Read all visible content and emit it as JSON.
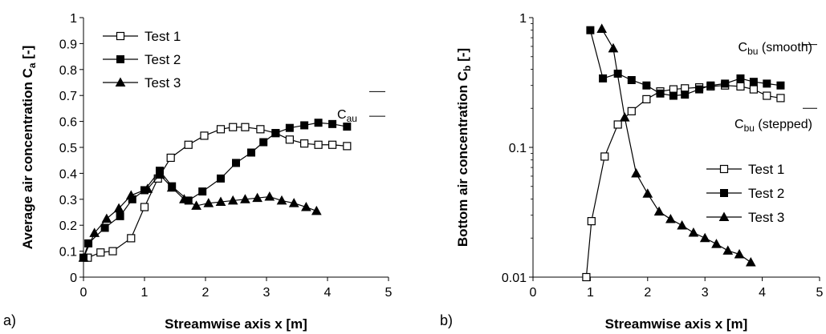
{
  "chart_data": [
    {
      "type": "line",
      "panel_label": "a)",
      "xlabel": "Streamwise axis x [m]",
      "ylabel_main": "Average air concentration C",
      "ylabel_sub": "a",
      "ylabel_tail": " [-]",
      "xlim": [
        0,
        5
      ],
      "ylim": [
        0,
        1
      ],
      "yscale": "linear",
      "x_ticks": [
        0,
        1,
        2,
        3,
        4,
        5
      ],
      "y_ticks": [
        0,
        0.1,
        0.2,
        0.3,
        0.4,
        0.5,
        0.6,
        0.7,
        0.8,
        0.9,
        1
      ],
      "grid": false,
      "legend_position": "top-left",
      "series": [
        {
          "name": "Test 1",
          "marker": "square-open",
          "color": "#000000",
          "x": [
            0.07,
            0.28,
            0.48,
            0.78,
            1.0,
            1.22,
            1.43,
            1.72,
            1.98,
            2.25,
            2.45,
            2.65,
            2.9,
            3.15,
            3.38,
            3.62,
            3.85,
            4.08,
            4.32
          ],
          "y": [
            0.075,
            0.095,
            0.1,
            0.15,
            0.27,
            0.38,
            0.46,
            0.51,
            0.545,
            0.57,
            0.578,
            0.578,
            0.57,
            0.555,
            0.53,
            0.515,
            0.51,
            0.51,
            0.505
          ]
        },
        {
          "name": "Test 2",
          "marker": "square-filled",
          "color": "#000000",
          "x": [
            0.0,
            0.08,
            0.35,
            0.6,
            0.8,
            1.0,
            1.25,
            1.45,
            1.72,
            1.95,
            2.25,
            2.5,
            2.75,
            2.95,
            3.15,
            3.38,
            3.62,
            3.85,
            4.08,
            4.32
          ],
          "y": [
            0.075,
            0.13,
            0.19,
            0.235,
            0.3,
            0.335,
            0.41,
            0.35,
            0.295,
            0.33,
            0.38,
            0.44,
            0.48,
            0.52,
            0.555,
            0.575,
            0.585,
            0.595,
            0.59,
            0.58
          ]
        },
        {
          "name": "Test 3",
          "marker": "triangle-filled",
          "color": "#000000",
          "x": [
            0.0,
            0.18,
            0.38,
            0.58,
            0.78,
            1.05,
            1.25,
            1.45,
            1.65,
            1.85,
            2.05,
            2.25,
            2.45,
            2.65,
            2.85,
            3.05,
            3.25,
            3.45,
            3.65,
            3.82
          ],
          "y": [
            0.075,
            0.17,
            0.225,
            0.265,
            0.315,
            0.34,
            0.395,
            0.345,
            0.3,
            0.275,
            0.285,
            0.29,
            0.295,
            0.3,
            0.305,
            0.31,
            0.295,
            0.285,
            0.27,
            0.255
          ]
        }
      ],
      "reference_lines": [
        {
          "label_main": "C",
          "label_sub": "au",
          "values": [
            0.715,
            0.62
          ]
        }
      ]
    },
    {
      "type": "line",
      "panel_label": "b)",
      "xlabel": "Streamwise axis x [m]",
      "ylabel_main": "Bottom air concentration C",
      "ylabel_sub": "b",
      "ylabel_tail": " [-]",
      "xlim": [
        0,
        5
      ],
      "ylim": [
        0.01,
        1
      ],
      "yscale": "log",
      "x_ticks": [
        0,
        1,
        2,
        3,
        4,
        5
      ],
      "y_ticks": [
        0.01,
        0.1,
        1
      ],
      "y_tick_labels": [
        "0.01",
        "0.1",
        "1"
      ],
      "grid": false,
      "legend_position": "bottom-right",
      "series": [
        {
          "name": "Test 1",
          "marker": "square-open",
          "color": "#000000",
          "x": [
            0.93,
            1.02,
            1.25,
            1.48,
            1.72,
            1.98,
            2.22,
            2.45,
            2.65,
            2.9,
            3.1,
            3.35,
            3.62,
            3.85,
            4.08,
            4.32
          ],
          "y": [
            0.01,
            0.027,
            0.085,
            0.15,
            0.19,
            0.235,
            0.27,
            0.28,
            0.285,
            0.29,
            0.295,
            0.3,
            0.295,
            0.28,
            0.25,
            0.24
          ]
        },
        {
          "name": "Test 2",
          "marker": "square-filled",
          "color": "#000000",
          "x": [
            1.0,
            1.22,
            1.48,
            1.72,
            1.98,
            2.22,
            2.45,
            2.65,
            2.9,
            3.1,
            3.35,
            3.62,
            3.85,
            4.08,
            4.32
          ],
          "y": [
            0.8,
            0.34,
            0.37,
            0.33,
            0.3,
            0.26,
            0.25,
            0.255,
            0.28,
            0.3,
            0.31,
            0.34,
            0.32,
            0.31,
            0.3
          ]
        },
        {
          "name": "Test 3",
          "marker": "triangle-filled",
          "color": "#000000",
          "x": [
            1.2,
            1.4,
            1.6,
            1.8,
            2.0,
            2.2,
            2.4,
            2.6,
            2.8,
            3.0,
            3.2,
            3.4,
            3.6,
            3.8
          ],
          "y": [
            0.82,
            0.58,
            0.17,
            0.063,
            0.044,
            0.032,
            0.028,
            0.025,
            0.022,
            0.02,
            0.018,
            0.016,
            0.015,
            0.013
          ]
        }
      ],
      "reference_lines": [
        {
          "label_main": "C",
          "label_sub": "bu",
          "label_tail": " (smooth)",
          "values": [
            0.62
          ]
        },
        {
          "label_main": "C",
          "label_sub": "bu",
          "label_tail": " (stepped)",
          "values": [
            0.2
          ]
        }
      ]
    }
  ]
}
